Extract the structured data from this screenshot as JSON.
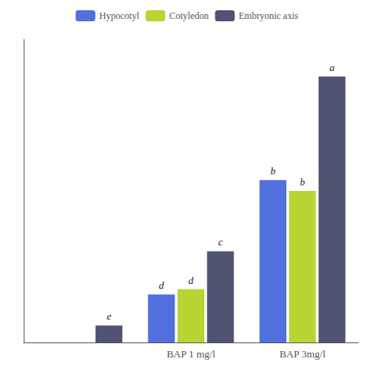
{
  "chart_data": {
    "type": "bar",
    "categories": [
      null,
      "BAP 1 mg/l",
      "BAP 3mg/l"
    ],
    "series": [
      {
        "name": "Hypocotyl",
        "values": [
          null,
          1.55,
          5.25
        ],
        "annotations": [
          null,
          "d",
          "b"
        ]
      },
      {
        "name": "Cotyledon",
        "values": [
          null,
          1.72,
          4.9
        ],
        "annotations": [
          null,
          "d",
          "b"
        ]
      },
      {
        "name": "Embryonic axis",
        "values": [
          0.55,
          2.95,
          8.6
        ],
        "annotations": [
          "e",
          "c",
          "a"
        ]
      }
    ],
    "ylim": [
      0,
      9.8
    ],
    "tick_labels": "x",
    "grid": false,
    "legend": "top"
  }
}
